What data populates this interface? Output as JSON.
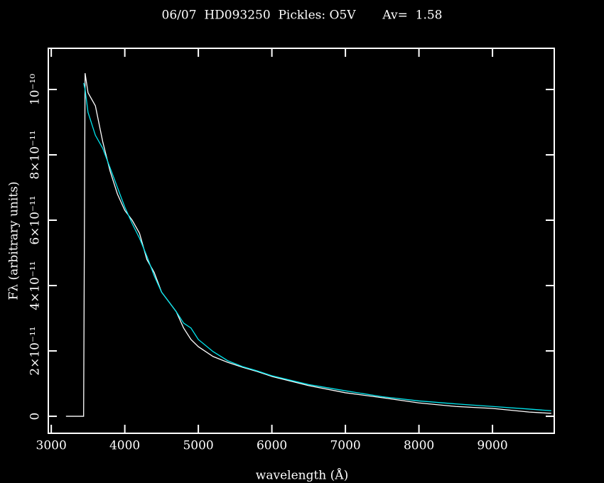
{
  "chart_data": {
    "type": "line",
    "title": "06/07  HD093250  Pickles: O5V       Av=  1.58",
    "x_label": "wavelength (Å)",
    "y_label": "Fλ (arbitrary units)",
    "xlim": [
      2960,
      9840
    ],
    "ylim": [
      -5.2e-12,
      1.126e-10
    ],
    "xticks": [
      3000,
      4000,
      5000,
      6000,
      7000,
      8000,
      9000
    ],
    "yticks": [
      0,
      {
        "value": 2e-11,
        "label": "2×10⁻¹¹"
      },
      {
        "value": 4e-11,
        "label": "4×10⁻¹¹"
      },
      {
        "value": 6e-11,
        "label": "6×10⁻¹¹"
      },
      {
        "value": 8e-11,
        "label": "8×10⁻¹¹"
      },
      {
        "value": 1e-10,
        "label": "10⁻¹⁰"
      }
    ],
    "x": [
      3200,
      3440,
      3460,
      3500,
      3600,
      3700,
      3800,
      3900,
      4000,
      4100,
      4200,
      4300,
      4400,
      4500,
      4600,
      4700,
      4800,
      4900,
      5000,
      5200,
      5400,
      5600,
      5800,
      6000,
      6500,
      7000,
      7500,
      8000,
      8500,
      9000,
      9500,
      9800
    ],
    "series": [
      {
        "color": "#ffffff",
        "values": [
          0,
          0,
          1.05e-10,
          9.9e-11,
          9.5e-11,
          8.4e-11,
          7.5e-11,
          6.8e-11,
          6.3e-11,
          6e-11,
          5.6e-11,
          4.8e-11,
          4.4e-11,
          3.8e-11,
          3.5e-11,
          3.2e-11,
          2.7e-11,
          2.35e-11,
          2.13e-11,
          1.83e-11,
          1.65e-11,
          1.5e-11,
          1.37e-11,
          1.22e-11,
          9.4e-12,
          7.2e-12,
          5.7e-12,
          4.1e-12,
          3e-12,
          2.4e-12,
          1.3e-12,
          9e-13
        ]
      },
      {
        "color": "#00e5ee",
        "values": [
          null,
          1.02e-10,
          1e-10,
          9.3e-11,
          8.6e-11,
          8.2e-11,
          7.6e-11,
          7e-11,
          6.4e-11,
          5.9e-11,
          5.45e-11,
          4.9e-11,
          4.3e-11,
          3.8e-11,
          3.5e-11,
          3.2e-11,
          2.85e-11,
          2.7e-11,
          2.35e-11,
          1.98e-11,
          1.7e-11,
          1.52e-11,
          1.39e-11,
          1.24e-11,
          9.7e-12,
          7.8e-12,
          6e-12,
          4.7e-12,
          3.8e-12,
          3e-12,
          2.2e-12,
          1.7e-12
        ]
      }
    ]
  }
}
